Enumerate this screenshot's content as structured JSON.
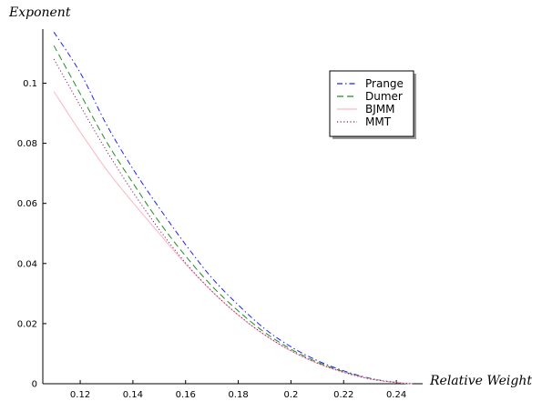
{
  "chart_data": {
    "type": "line",
    "title": "",
    "xlabel": "Relative Weight",
    "ylabel": "Exponent",
    "xlim": [
      0.1058,
      0.25
    ],
    "ylim": [
      0,
      0.118
    ],
    "grid": false,
    "legend_placement": "top-right",
    "x_ticks": [
      0.12,
      0.14,
      0.16,
      0.18,
      0.2,
      0.22,
      0.24
    ],
    "x_tick_labels": [
      "0.12",
      "0.14",
      "0.16",
      "0.18",
      "0.2",
      "0.22",
      "0.24"
    ],
    "y_ticks": [
      0,
      0.02,
      0.04,
      0.06,
      0.08,
      0.1
    ],
    "y_tick_labels": [
      "0",
      "0.02",
      "0.04",
      "0.06",
      "0.08",
      "0.1"
    ],
    "series": [
      {
        "name": "Prange",
        "color": "#1f1fff",
        "dash": "dash-dot",
        "points": [
          [
            0.11,
            0.117
          ],
          [
            0.12,
            0.1035
          ],
          [
            0.13,
            0.0862
          ],
          [
            0.14,
            0.0715
          ],
          [
            0.15,
            0.0585
          ],
          [
            0.16,
            0.0463
          ],
          [
            0.17,
            0.0352
          ],
          [
            0.18,
            0.0262
          ],
          [
            0.19,
            0.0183
          ],
          [
            0.2,
            0.0123
          ],
          [
            0.21,
            0.0077
          ],
          [
            0.22,
            0.0043
          ],
          [
            0.23,
            0.0018
          ],
          [
            0.24,
            0.0004
          ],
          [
            0.246,
            0.0
          ]
        ]
      },
      {
        "name": "Dumer",
        "color": "#1f8f1f",
        "dash": "dashed",
        "points": [
          [
            0.11,
            0.1125
          ],
          [
            0.12,
            0.0965
          ],
          [
            0.13,
            0.0805
          ],
          [
            0.14,
            0.0668
          ],
          [
            0.15,
            0.0538
          ],
          [
            0.16,
            0.0425
          ],
          [
            0.17,
            0.0325
          ],
          [
            0.18,
            0.0242
          ],
          [
            0.19,
            0.0171
          ],
          [
            0.2,
            0.0115
          ],
          [
            0.21,
            0.0072
          ],
          [
            0.22,
            0.004
          ],
          [
            0.23,
            0.0017
          ],
          [
            0.24,
            0.0004
          ],
          [
            0.246,
            0.0
          ]
        ]
      },
      {
        "name": "BJMM",
        "color": "#ffb6c1",
        "dash": "solid",
        "points": [
          [
            0.11,
            0.0972
          ],
          [
            0.12,
            0.0838
          ],
          [
            0.13,
            0.0712
          ],
          [
            0.14,
            0.0603
          ],
          [
            0.15,
            0.05
          ],
          [
            0.16,
            0.0398
          ],
          [
            0.17,
            0.0307
          ],
          [
            0.18,
            0.0228
          ],
          [
            0.19,
            0.0162
          ],
          [
            0.2,
            0.0109
          ],
          [
            0.21,
            0.0068
          ],
          [
            0.22,
            0.0038
          ],
          [
            0.23,
            0.0016
          ],
          [
            0.24,
            0.0004
          ],
          [
            0.246,
            0.0
          ]
        ]
      },
      {
        "name": "MMT",
        "color": "#8b1a6b",
        "dash": "dotted",
        "points": [
          [
            0.11,
            0.108
          ],
          [
            0.12,
            0.0925
          ],
          [
            0.13,
            0.0775
          ],
          [
            0.14,
            0.0638
          ],
          [
            0.15,
            0.0513
          ],
          [
            0.16,
            0.0402
          ],
          [
            0.17,
            0.0308
          ],
          [
            0.18,
            0.0229
          ],
          [
            0.19,
            0.0163
          ],
          [
            0.2,
            0.011
          ],
          [
            0.21,
            0.0069
          ],
          [
            0.22,
            0.0038
          ],
          [
            0.23,
            0.0016
          ],
          [
            0.24,
            0.0004
          ],
          [
            0.246,
            0.0
          ]
        ]
      }
    ]
  }
}
